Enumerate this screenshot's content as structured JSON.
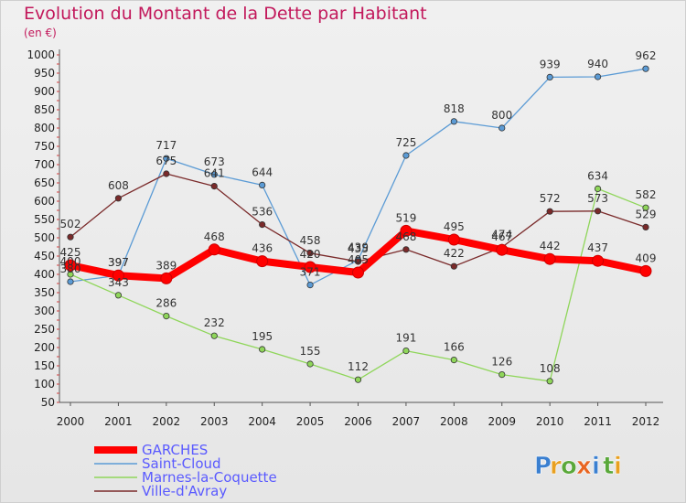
{
  "chart_data": {
    "type": "line",
    "title": "Evolution du Montant de la Dette par Habitant",
    "subtitle": "(en €)",
    "xlabel": "",
    "ylabel": "",
    "x": [
      2000,
      2001,
      2002,
      2003,
      2004,
      2005,
      2006,
      2007,
      2008,
      2009,
      2010,
      2011,
      2012
    ],
    "ylim": [
      50,
      1000
    ],
    "yticks": [
      50,
      100,
      150,
      200,
      250,
      300,
      350,
      400,
      450,
      500,
      550,
      600,
      650,
      700,
      750,
      800,
      850,
      900,
      950,
      1000
    ],
    "grid": false,
    "legend_position": "bottom-left",
    "series": [
      {
        "name": "GARCHES",
        "color": "#ff0000",
        "values": [
          425,
          397,
          389,
          468,
          436,
          420,
          405,
          519,
          495,
          467,
          442,
          437,
          409
        ]
      },
      {
        "name": "Saint-Cloud",
        "color": "#5b9bd5",
        "values": [
          380,
          397,
          717,
          673,
          644,
          371,
          439,
          725,
          818,
          800,
          939,
          940,
          962
        ]
      },
      {
        "name": "Marnes-la-Coquette",
        "color": "#8fd65a",
        "values": [
          400,
          343,
          286,
          232,
          195,
          155,
          112,
          191,
          166,
          126,
          108,
          634,
          582
        ]
      },
      {
        "name": "Ville-d'Avray",
        "color": "#7a2a2a",
        "values": [
          502,
          608,
          675,
          641,
          536,
          458,
          435,
          468,
          422,
          474,
          572,
          573,
          529
        ]
      }
    ]
  },
  "brand": {
    "letters": [
      "P",
      "r",
      "o",
      "x",
      "i",
      "t",
      "i"
    ],
    "colors": [
      "#3a7fd0",
      "#e8a020",
      "#5aa83a",
      "#e86420",
      "#3a7fd0",
      "#5aa83a",
      "#e8a020"
    ]
  }
}
